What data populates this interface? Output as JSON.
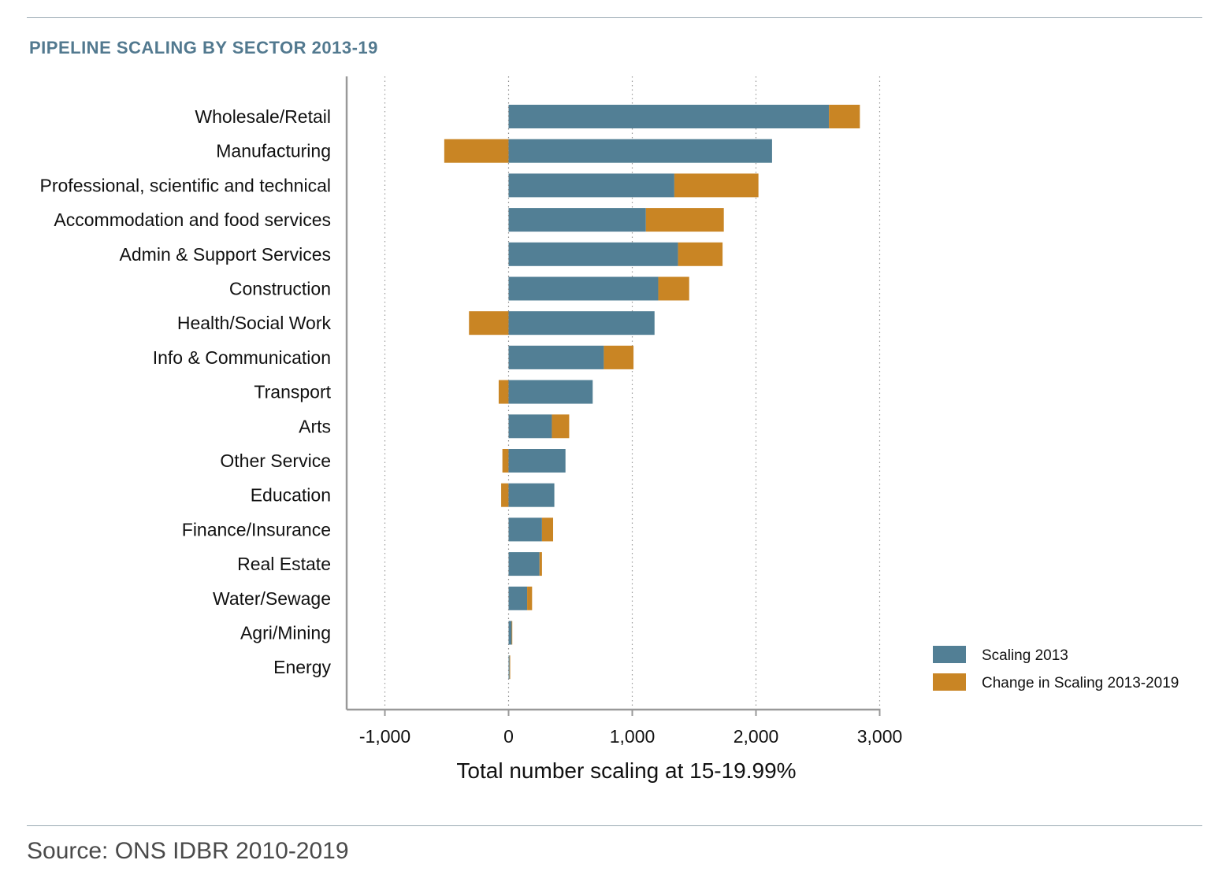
{
  "title": "PIPELINE SCALING BY SECTOR 2013-19",
  "source": "Source: ONS IDBR 2010-2019",
  "chart_data": {
    "type": "bar",
    "orientation": "horizontal",
    "stacked": true,
    "categories": [
      "Wholesale/Retail",
      "Manufacturing",
      "Professional, scientific and technical",
      "Accommodation and food services",
      "Admin & Support Services",
      "Construction",
      "Health/Social Work",
      "Info & Communication",
      "Transport",
      "Arts",
      "Other Service",
      "Education",
      "Finance/Insurance",
      "Real Estate",
      "Water/Sewage",
      "Agri/Mining",
      "Energy"
    ],
    "series": [
      {
        "name": "Scaling 2013",
        "color": "#527f95",
        "values": [
          2590,
          2130,
          1340,
          1110,
          1370,
          1210,
          1180,
          770,
          680,
          350,
          460,
          370,
          270,
          250,
          150,
          25,
          8
        ]
      },
      {
        "name": "Change in Scaling 2013-2019",
        "color": "#c98524",
        "values": [
          250,
          -520,
          680,
          630,
          360,
          250,
          -320,
          240,
          -80,
          140,
          -50,
          -60,
          90,
          20,
          40,
          5,
          5
        ]
      }
    ],
    "xlabel": "Total number scaling at 15-19.99%",
    "ylabel": "",
    "xlim": [
      -1300,
      3000
    ],
    "xticks": [
      -1000,
      0,
      1000,
      2000,
      3000
    ],
    "xtick_labels": [
      "-1,000",
      "0",
      "1,000",
      "2,000",
      "3,000"
    ],
    "grid": "vertical dotted",
    "legend_position": "right"
  }
}
